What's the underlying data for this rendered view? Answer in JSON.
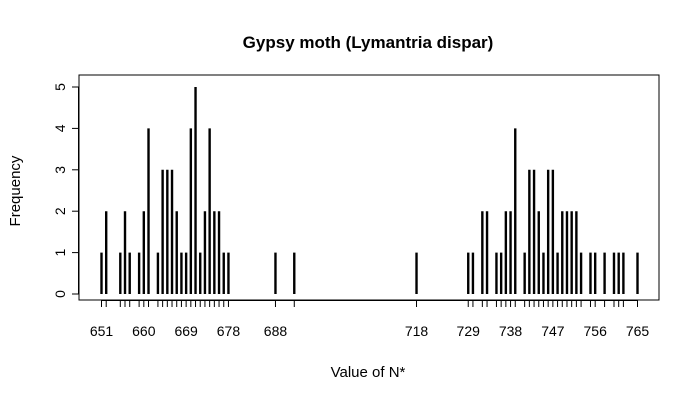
{
  "chart_data": {
    "type": "bar",
    "title": "Gypsy moth (Lymantria dispar)",
    "xlabel": "Value of N*",
    "ylabel": "Frequency",
    "xlim": [
      651,
      765
    ],
    "ylim": [
      0,
      5
    ],
    "yticks": [
      0,
      1,
      2,
      3,
      4,
      5
    ],
    "xtick_labels": [
      "651",
      "660",
      "669",
      "678",
      "688",
      "718",
      "729",
      "738",
      "747",
      "756",
      "765"
    ],
    "minor_xticks": [
      651,
      652,
      655,
      656,
      657,
      659,
      660,
      661,
      663,
      664,
      665,
      666,
      667,
      668,
      669,
      670,
      671,
      672,
      673,
      674,
      675,
      676,
      677,
      678,
      688,
      692,
      718,
      729,
      730,
      732,
      733,
      735,
      736,
      737,
      738,
      739,
      741,
      742,
      743,
      744,
      745,
      746,
      747,
      748,
      749,
      750,
      751,
      752,
      753,
      755,
      756,
      758,
      760,
      761,
      762,
      765
    ],
    "bars": [
      {
        "x": 651,
        "y": 1
      },
      {
        "x": 652,
        "y": 2
      },
      {
        "x": 655,
        "y": 1
      },
      {
        "x": 656,
        "y": 2
      },
      {
        "x": 657,
        "y": 1
      },
      {
        "x": 659,
        "y": 1
      },
      {
        "x": 660,
        "y": 2
      },
      {
        "x": 661,
        "y": 4
      },
      {
        "x": 663,
        "y": 1
      },
      {
        "x": 664,
        "y": 3
      },
      {
        "x": 665,
        "y": 3
      },
      {
        "x": 666,
        "y": 3
      },
      {
        "x": 667,
        "y": 2
      },
      {
        "x": 668,
        "y": 1
      },
      {
        "x": 669,
        "y": 1
      },
      {
        "x": 670,
        "y": 4
      },
      {
        "x": 671,
        "y": 5
      },
      {
        "x": 672,
        "y": 1
      },
      {
        "x": 673,
        "y": 2
      },
      {
        "x": 674,
        "y": 4
      },
      {
        "x": 675,
        "y": 2
      },
      {
        "x": 676,
        "y": 2
      },
      {
        "x": 677,
        "y": 1
      },
      {
        "x": 678,
        "y": 1
      },
      {
        "x": 688,
        "y": 1
      },
      {
        "x": 692,
        "y": 1
      },
      {
        "x": 718,
        "y": 1
      },
      {
        "x": 729,
        "y": 1
      },
      {
        "x": 730,
        "y": 1
      },
      {
        "x": 732,
        "y": 2
      },
      {
        "x": 733,
        "y": 2
      },
      {
        "x": 735,
        "y": 1
      },
      {
        "x": 736,
        "y": 1
      },
      {
        "x": 737,
        "y": 2
      },
      {
        "x": 738,
        "y": 2
      },
      {
        "x": 739,
        "y": 4
      },
      {
        "x": 741,
        "y": 1
      },
      {
        "x": 742,
        "y": 3
      },
      {
        "x": 743,
        "y": 3
      },
      {
        "x": 744,
        "y": 2
      },
      {
        "x": 745,
        "y": 1
      },
      {
        "x": 746,
        "y": 3
      },
      {
        "x": 747,
        "y": 3
      },
      {
        "x": 748,
        "y": 1
      },
      {
        "x": 749,
        "y": 2
      },
      {
        "x": 750,
        "y": 2
      },
      {
        "x": 751,
        "y": 2
      },
      {
        "x": 752,
        "y": 2
      },
      {
        "x": 753,
        "y": 1
      },
      {
        "x": 755,
        "y": 1
      },
      {
        "x": 756,
        "y": 1
      },
      {
        "x": 758,
        "y": 1
      },
      {
        "x": 760,
        "y": 1
      },
      {
        "x": 761,
        "y": 1
      },
      {
        "x": 762,
        "y": 1
      },
      {
        "x": 765,
        "y": 1
      }
    ]
  }
}
